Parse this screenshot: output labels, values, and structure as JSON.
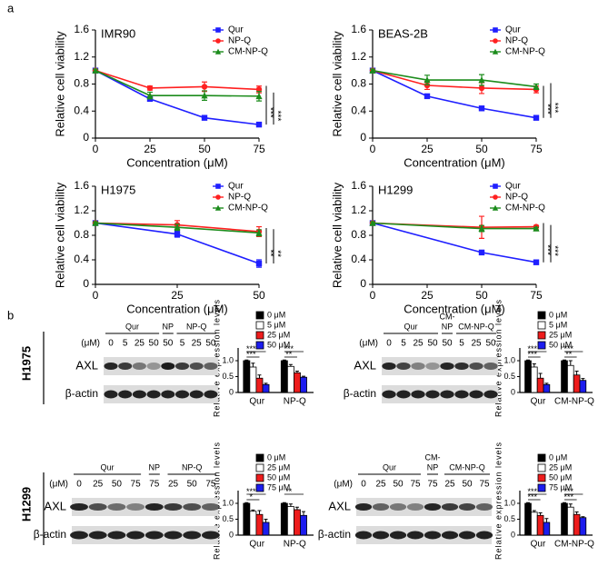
{
  "panel_labels": [
    "a",
    "b"
  ],
  "cell_lines": [
    "H1975",
    "H1299"
  ],
  "blots": [
    {
      "groups": [
        [
          "Qur"
        ],
        [
          "NP"
        ],
        [
          "NP-Q"
        ]
      ],
      "unit": "(μM)",
      "lanes": [
        "0",
        "5",
        "25",
        "50",
        "50",
        "5",
        "25",
        "50"
      ],
      "rows": [
        "AXL",
        "β-actin"
      ]
    },
    {
      "groups": [
        [
          "Qur"
        ],
        [
          "CM-",
          "NP"
        ],
        [
          "CM-NP-Q"
        ]
      ],
      "unit": "(μM)",
      "lanes": [
        "0",
        "5",
        "25",
        "50",
        "50",
        "5",
        "25",
        "50"
      ],
      "rows": [
        "AXL",
        "β-actin"
      ]
    },
    {
      "groups": [
        [
          "Qur"
        ],
        [
          "NP"
        ],
        [
          "NP-Q"
        ]
      ],
      "unit": "(μM)",
      "lanes": [
        "0",
        "25",
        "50",
        "75",
        "75",
        "25",
        "50",
        "75"
      ],
      "rows": [
        "AXL",
        "β-actin"
      ]
    },
    {
      "groups": [
        [
          "Qur"
        ],
        [
          "CM-",
          "NP"
        ],
        [
          "CM-NP-Q"
        ]
      ],
      "unit": "(μM)",
      "lanes": [
        "0",
        "25",
        "50",
        "75",
        "75",
        "25",
        "50",
        "75"
      ],
      "rows": [
        "AXL",
        "β-actin"
      ]
    }
  ],
  "chart_data": [
    {
      "type": "line",
      "title": "IMR90",
      "x_label": "Concentration (μM)",
      "y_label": "Relative cell viability",
      "x": [
        0,
        25,
        50,
        75
      ],
      "xlim": [
        0,
        75
      ],
      "xticks": [
        0,
        25,
        50,
        75
      ],
      "ylim": [
        0,
        1.6
      ],
      "yticks": [
        0,
        0.4,
        0.8,
        1.2,
        1.6
      ],
      "series": [
        {
          "name": "Qur",
          "color": "#1f1fff",
          "marker": "square",
          "values": [
            1.0,
            0.58,
            0.3,
            0.2
          ],
          "errors": [
            0.02,
            0.03,
            0.02,
            0.02
          ]
        },
        {
          "name": "NP-Q",
          "color": "#ff2020",
          "marker": "circle",
          "values": [
            1.0,
            0.74,
            0.76,
            0.72
          ],
          "errors": [
            0.02,
            0.03,
            0.07,
            0.05
          ]
        },
        {
          "name": "CM-NP-Q",
          "color": "#1c8c1c",
          "marker": "triangle",
          "values": [
            1.0,
            0.63,
            0.63,
            0.62
          ],
          "errors": [
            0.02,
            0.05,
            0.07,
            0.07
          ]
        }
      ],
      "annotations": [
        "***",
        "***"
      ]
    },
    {
      "type": "line",
      "title": "BEAS-2B",
      "x_label": "Concentration (μM)",
      "y_label": "Relative cell viability",
      "x": [
        0,
        25,
        50,
        75
      ],
      "xlim": [
        0,
        75
      ],
      "xticks": [
        0,
        25,
        50,
        75
      ],
      "ylim": [
        0,
        1.6
      ],
      "yticks": [
        0,
        0.4,
        0.8,
        1.2,
        1.6
      ],
      "series": [
        {
          "name": "Qur",
          "color": "#1f1fff",
          "marker": "square",
          "values": [
            1.0,
            0.62,
            0.44,
            0.3
          ],
          "errors": [
            0.02,
            0.02,
            0.02,
            0.02
          ]
        },
        {
          "name": "NP-Q",
          "color": "#ff2020",
          "marker": "circle",
          "values": [
            1.0,
            0.78,
            0.74,
            0.72
          ],
          "errors": [
            0.02,
            0.06,
            0.08,
            0.05
          ]
        },
        {
          "name": "CM-NP-Q",
          "color": "#1c8c1c",
          "marker": "triangle",
          "values": [
            1.0,
            0.86,
            0.86,
            0.76
          ],
          "errors": [
            0.02,
            0.07,
            0.08,
            0.04
          ]
        }
      ],
      "annotations": [
        "***",
        "***"
      ]
    },
    {
      "type": "line",
      "title": "H1975",
      "x_label": "Concentration (μM)",
      "y_label": "Relative cell viability",
      "x": [
        0,
        25,
        50
      ],
      "xlim": [
        0,
        50
      ],
      "xticks": [
        0,
        25,
        50
      ],
      "ylim": [
        0,
        1.6
      ],
      "yticks": [
        0,
        0.4,
        0.8,
        1.2,
        1.6
      ],
      "series": [
        {
          "name": "Qur",
          "color": "#1f1fff",
          "marker": "square",
          "values": [
            1.0,
            0.82,
            0.34
          ],
          "errors": [
            0.02,
            0.05,
            0.06
          ]
        },
        {
          "name": "NP-Q",
          "color": "#ff2020",
          "marker": "circle",
          "values": [
            1.0,
            0.97,
            0.86
          ],
          "errors": [
            0.02,
            0.07,
            0.08
          ]
        },
        {
          "name": "CM-NP-Q",
          "color": "#1c8c1c",
          "marker": "triangle",
          "values": [
            1.0,
            0.93,
            0.84
          ],
          "errors": [
            0.02,
            0.05,
            0.05
          ]
        }
      ],
      "annotations": [
        "**",
        "**"
      ]
    },
    {
      "type": "line",
      "title": "H1299",
      "x_label": "Concentration (μM)",
      "y_label": "Relative cell viability",
      "x": [
        0,
        50,
        75
      ],
      "xlim": [
        0,
        75
      ],
      "xticks": [
        0,
        25,
        50,
        75
      ],
      "ylim": [
        0,
        1.6
      ],
      "yticks": [
        0,
        0.4,
        0.8,
        1.2,
        1.6
      ],
      "series": [
        {
          "name": "Qur",
          "color": "#1f1fff",
          "marker": "square",
          "values": [
            1.0,
            0.52,
            0.36
          ],
          "errors": [
            0.02,
            0.02,
            0.02
          ]
        },
        {
          "name": "NP-Q",
          "color": "#ff2020",
          "marker": "circle",
          "values": [
            1.0,
            0.93,
            0.94
          ],
          "errors": [
            0.02,
            0.18,
            0.02
          ]
        },
        {
          "name": "CM-NP-Q",
          "color": "#1c8c1c",
          "marker": "triangle",
          "values": [
            1.0,
            0.91,
            0.91
          ],
          "errors": [
            0.02,
            0.05,
            0.02
          ]
        }
      ],
      "annotations": [
        "***",
        "***"
      ]
    },
    {
      "type": "bar",
      "y_label": "Relative expression levels",
      "categories": [
        "Qur",
        "NP-Q"
      ],
      "ylim": [
        0,
        1.4
      ],
      "yticks": [
        0,
        0.5,
        {
          "value": 1,
          "label": "1.0"
        }
      ],
      "series": [
        {
          "name": "0 μM",
          "color": "#000000",
          "values": [
            1,
            1
          ],
          "errors": [
            0.02,
            0.02
          ]
        },
        {
          "name": "5 μM",
          "color": "#ffffff",
          "values": [
            0.8,
            0.82
          ],
          "errors": [
            0.12,
            0.06
          ]
        },
        {
          "name": "25 μM",
          "color": "#ee1c1c",
          "values": [
            0.45,
            0.62
          ],
          "errors": [
            0.1,
            0.05
          ]
        },
        {
          "name": "50 μM",
          "color": "#1c1cee",
          "values": [
            0.25,
            0.48
          ],
          "errors": [
            0.04,
            0.03
          ]
        }
      ],
      "annotations": [
        "***",
        "***",
        "***",
        "**"
      ]
    },
    {
      "type": "bar",
      "y_label": "Relative expression levels",
      "categories": [
        "Qur",
        "CM-NP-Q"
      ],
      "ylim": [
        0,
        1.4
      ],
      "yticks": [
        0,
        0.5,
        {
          "value": 1,
          "label": "1.0"
        }
      ],
      "series": [
        {
          "name": "0 μM",
          "color": "#000000",
          "values": [
            1,
            1
          ],
          "errors": [
            0.02,
            0.02
          ]
        },
        {
          "name": "5 μM",
          "color": "#ffffff",
          "values": [
            0.8,
            0.85
          ],
          "errors": [
            0.1,
            0.15
          ]
        },
        {
          "name": "25 μM",
          "color": "#ee1c1c",
          "values": [
            0.45,
            0.55
          ],
          "errors": [
            0.15,
            0.12
          ]
        },
        {
          "name": "50 μM",
          "color": "#1c1cee",
          "values": [
            0.25,
            0.38
          ],
          "errors": [
            0.04,
            0.06
          ]
        }
      ],
      "annotations": [
        "***",
        "***",
        "***",
        "**"
      ]
    },
    {
      "type": "bar",
      "y_label": "Relative expression levels",
      "categories": [
        "Qur",
        "NP-Q"
      ],
      "ylim": [
        0,
        1.4
      ],
      "yticks": [
        0,
        0.5,
        {
          "value": 1,
          "label": "1.0"
        }
      ],
      "series": [
        {
          "name": "0 μM",
          "color": "#000000",
          "values": [
            1,
            1
          ],
          "errors": [
            0.02,
            0.02
          ]
        },
        {
          "name": "25 μM",
          "color": "#ffffff",
          "values": [
            0.75,
            0.9
          ],
          "errors": [
            0.04,
            0.08
          ]
        },
        {
          "name": "50 μM",
          "color": "#ee1c1c",
          "values": [
            0.65,
            0.8
          ],
          "errors": [
            0.12,
            0.08
          ]
        },
        {
          "name": "75 μM",
          "color": "#1c1cee",
          "values": [
            0.4,
            0.62
          ],
          "errors": [
            0.1,
            0.12
          ]
        }
      ],
      "annotations": [
        "***",
        "*",
        "**"
      ]
    },
    {
      "type": "bar",
      "y_label": "Relative expression levels",
      "categories": [
        "Qur",
        "CM-NP-Q"
      ],
      "ylim": [
        0,
        1.4
      ],
      "yticks": [
        0,
        0.5,
        {
          "value": 1,
          "label": "1.0"
        }
      ],
      "series": [
        {
          "name": "0 μM",
          "color": "#000000",
          "values": [
            1,
            1
          ],
          "errors": [
            0.02,
            0.02
          ]
        },
        {
          "name": "25 μM",
          "color": "#ffffff",
          "values": [
            0.72,
            0.88
          ],
          "errors": [
            0.05,
            0.1
          ]
        },
        {
          "name": "50 μM",
          "color": "#ee1c1c",
          "values": [
            0.62,
            0.65
          ],
          "errors": [
            0.08,
            0.08
          ]
        },
        {
          "name": "75 μM",
          "color": "#1c1cee",
          "values": [
            0.4,
            0.55
          ],
          "errors": [
            0.12,
            0.03
          ]
        }
      ],
      "annotations": [
        "***",
        "***",
        "***",
        "***"
      ]
    }
  ]
}
